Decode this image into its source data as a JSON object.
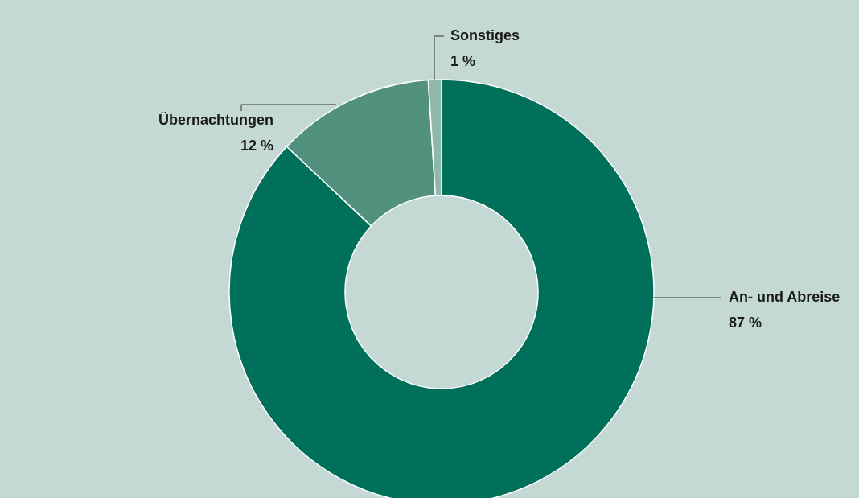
{
  "chart_data": {
    "type": "donut",
    "categories": [
      "An- und Abreise",
      "Übernachtungen",
      "Sonstiges"
    ],
    "values": [
      87,
      12,
      1
    ],
    "colors": [
      "#00705a",
      "#52917e",
      "#8db8ab"
    ],
    "value_labels": [
      "87 %",
      "12 %",
      "1 %"
    ]
  }
}
